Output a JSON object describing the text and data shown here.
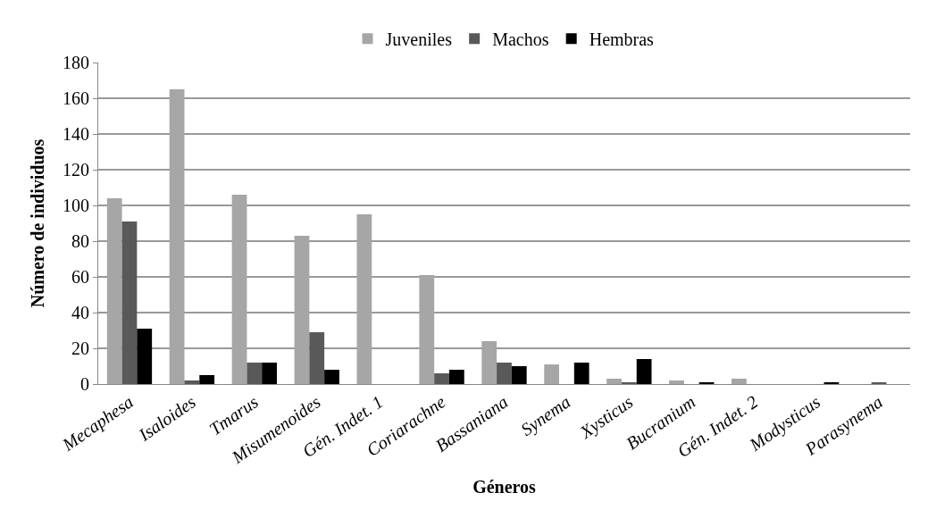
{
  "chart_data": {
    "type": "bar",
    "xlabel": "Géneros",
    "ylabel": "Número de individuos",
    "categories": [
      "Mecaphesa",
      "Isaloides",
      "Tmarus",
      "Misumenoides",
      "Gén. Indet. 1",
      "Coriarachne",
      "Bassaniana",
      "Synema",
      "Xysticus",
      "Bucranium",
      "Gén. Indet. 2",
      "Modysticus",
      "Parasynema"
    ],
    "series": [
      {
        "name": "Juveniles",
        "color": "#a6a6a6",
        "values": [
          104,
          165,
          106,
          83,
          95,
          61,
          24,
          11,
          3,
          2,
          3,
          0,
          0
        ]
      },
      {
        "name": "Machos",
        "color": "#595959",
        "values": [
          91,
          2,
          12,
          29,
          0,
          6,
          12,
          0,
          1,
          0,
          0,
          0,
          1
        ]
      },
      {
        "name": "Hembras",
        "color": "#000000",
        "values": [
          31,
          5,
          12,
          8,
          0,
          8,
          10,
          12,
          14,
          1,
          0,
          1,
          0
        ]
      }
    ],
    "ylim": [
      0,
      180
    ],
    "yticks": [
      0,
      20,
      40,
      60,
      80,
      100,
      120,
      140,
      160,
      180
    ],
    "grid": "y",
    "legend": "top"
  }
}
